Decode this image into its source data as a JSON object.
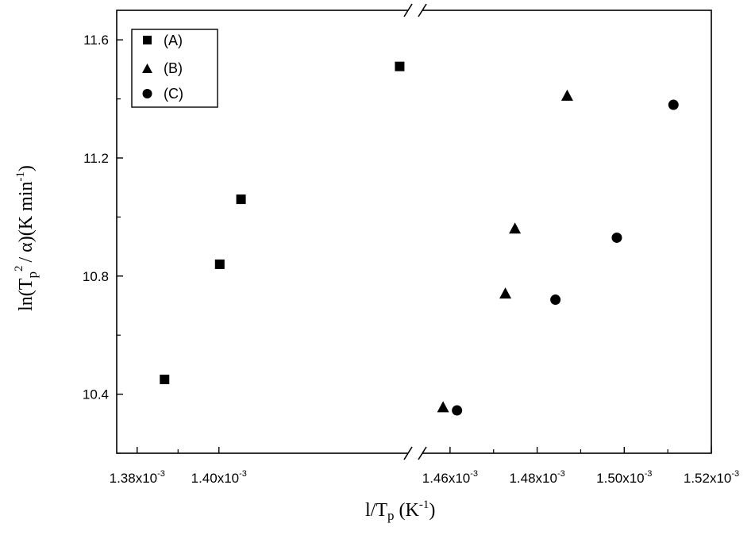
{
  "chart_data": {
    "type": "scatter",
    "xlabel": "l/T",
    "xlabel_sub": "p",
    "xlabel_unit": "(K",
    "xlabel_unit_sup": "-1",
    "xlabel_unit_close": ")",
    "ylabel": "ln(T",
    "ylabel_sub": "p",
    "ylabel_sup": "2",
    "ylabel_mid": "/ α)(K min",
    "ylabel_sup2": "-1",
    "ylabel_close": ")",
    "x_axis_break": true,
    "x_segments": [
      {
        "range": [
          0.001375,
          0.001448
        ],
        "ticks": [
          0.00138,
          0.0014
        ]
      },
      {
        "range": [
          0.001452,
          0.00152
        ],
        "ticks": [
          0.00146,
          0.00148,
          0.0015,
          0.00152
        ]
      }
    ],
    "ylim": [
      10.2,
      11.7
    ],
    "y_ticks": [
      "10.4",
      "10.8",
      "11.2",
      "11.6"
    ],
    "x_tick_labels": [
      {
        "mantissa": "1.38x10",
        "exp": "-3"
      },
      {
        "mantissa": "1.40x10",
        "exp": "-3"
      },
      {
        "mantissa": "1.46x10",
        "exp": "-3"
      },
      {
        "mantissa": "1.48x10",
        "exp": "-3"
      },
      {
        "mantissa": "1.50x10",
        "exp": "-3"
      },
      {
        "mantissa": "1.52x10",
        "exp": "-3"
      }
    ],
    "legend_position": "top-left",
    "series": [
      {
        "name": "(A)",
        "marker": "square",
        "points": [
          [
            0.0013867,
            10.45
          ],
          [
            0.0014002,
            10.84
          ],
          [
            0.0014054,
            11.06
          ],
          [
            0.0014442,
            11.51
          ]
        ]
      },
      {
        "name": "(B)",
        "marker": "triangle",
        "points": [
          [
            0.0014584,
            10.355
          ],
          [
            0.0014727,
            10.74
          ],
          [
            0.0014749,
            10.96
          ],
          [
            0.0014869,
            11.41
          ]
        ]
      },
      {
        "name": "(C)",
        "marker": "circle",
        "points": [
          [
            0.0014616,
            10.345
          ],
          [
            0.0014842,
            10.72
          ],
          [
            0.0014983,
            10.93
          ],
          [
            0.0015113,
            11.38
          ]
        ]
      }
    ]
  }
}
